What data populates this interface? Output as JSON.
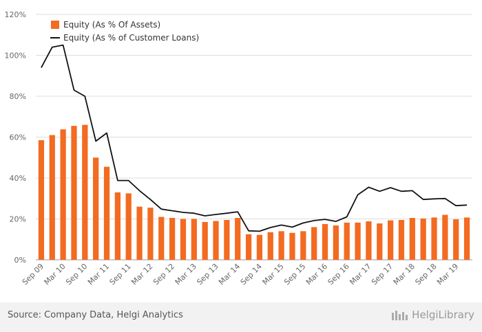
{
  "chart_data": {
    "type": "bar",
    "categories": [
      "Sep 09",
      "Dec 09",
      "Mar 10",
      "Jun 10",
      "Sep 10",
      "Dec 10",
      "Mar 11",
      "Jun 11",
      "Sep 11",
      "Dec 11",
      "Mar 12",
      "Jun 12",
      "Sep 12",
      "Dec 12",
      "Mar 13",
      "Jun 13",
      "Sep 13",
      "Dec 13",
      "Mar 14",
      "Jun 14",
      "Sep 14",
      "Dec 14",
      "Mar 15",
      "Jun 15",
      "Sep 15",
      "Dec 15",
      "Mar 16",
      "Jun 16",
      "Sep 16",
      "Dec 16",
      "Mar 17",
      "Jun 17",
      "Sep 17",
      "Dec 17",
      "Mar 18",
      "Jun 18",
      "Sep 18",
      "Dec 18",
      "Mar 19",
      "Jun 19"
    ],
    "tick_labels": [
      "Sep 09",
      "Mar 10",
      "Sep 10",
      "Mar 11",
      "Sep 11",
      "Mar 12",
      "Sep 12",
      "Mar 13",
      "Sep 13",
      "Mar 14",
      "Sep 14",
      "Mar 15",
      "Sep 15",
      "Mar 16",
      "Sep 16",
      "Mar 17",
      "Sep 17",
      "Mar 18",
      "Sep 18",
      "Mar 19"
    ],
    "series": [
      {
        "name": "Equity (As % Of Assets)",
        "type": "bar",
        "color": "#f26b21",
        "values": [
          58.5,
          61.0,
          63.8,
          65.5,
          66.0,
          50.0,
          45.5,
          33.0,
          32.5,
          26.0,
          25.5,
          21.0,
          20.5,
          20.0,
          20.0,
          18.5,
          19.0,
          19.5,
          20.5,
          12.5,
          12.2,
          13.5,
          14.0,
          13.2,
          14.0,
          16.0,
          17.5,
          16.8,
          18.2,
          18.2,
          18.8,
          17.8,
          19.3,
          19.5,
          20.5,
          20.2,
          20.7,
          22.0,
          19.8,
          20.7
        ]
      },
      {
        "name": "Equity (As % of Customer Loans)",
        "type": "line",
        "color": "#111111",
        "values": [
          94.0,
          104.0,
          105.0,
          83.0,
          80.0,
          58.0,
          62.0,
          38.8,
          38.8,
          33.8,
          29.5,
          24.8,
          24.0,
          23.2,
          22.8,
          21.5,
          22.2,
          22.8,
          23.5,
          14.2,
          14.0,
          15.8,
          17.0,
          16.0,
          18.0,
          19.2,
          19.8,
          18.8,
          21.0,
          31.8,
          35.5,
          33.5,
          35.3,
          33.5,
          33.8,
          29.5,
          29.8,
          30.0,
          26.5,
          26.8
        ]
      }
    ],
    "y_tick_labels": [
      "0%",
      "20%",
      "40%",
      "60%",
      "80%",
      "100%",
      "120%"
    ],
    "ylim": [
      0,
      120
    ],
    "grid": true,
    "legend_position": "top-left"
  },
  "footer": {
    "source": "Source: Company Data, Helgi Analytics",
    "logo": "HelgiLibrary"
  }
}
